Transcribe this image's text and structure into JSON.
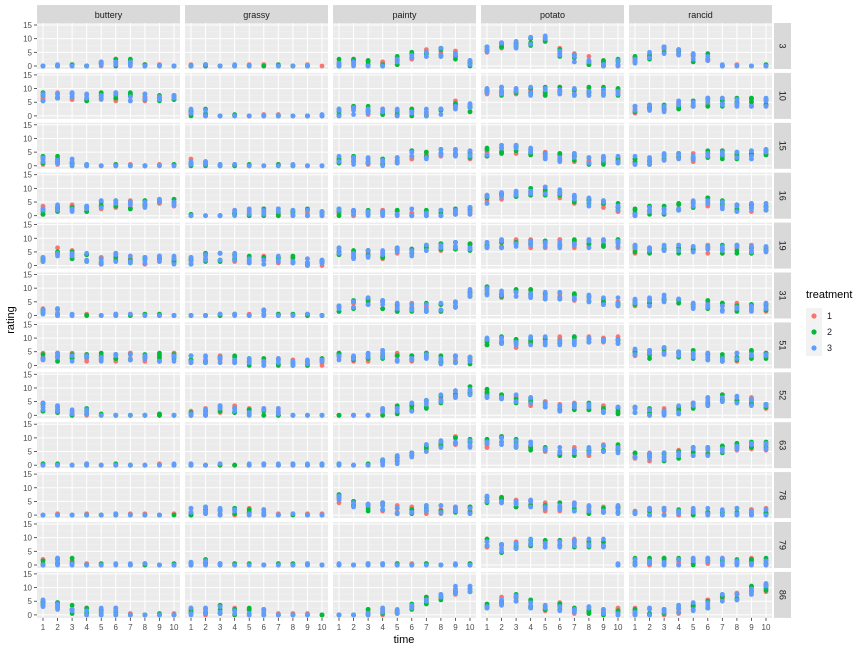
{
  "chart_data": {
    "type": "scatter",
    "layout": "facet_grid",
    "title": "",
    "xlabel": "time",
    "ylabel": "rating",
    "x_ticks": [
      "1",
      "2",
      "3",
      "4",
      "5",
      "6",
      "7",
      "8",
      "9",
      "10"
    ],
    "y_ticks": [
      "0",
      "5",
      "10",
      "15"
    ],
    "xlim": [
      1,
      10
    ],
    "ylim": [
      0,
      15
    ],
    "grid": true,
    "legend_position": "right",
    "columns": [
      "buttery",
      "grassy",
      "painty",
      "potato",
      "rancid"
    ],
    "rows": [
      "3",
      "10",
      "15",
      "16",
      "19",
      "31",
      "51",
      "52",
      "63",
      "78",
      "79",
      "86"
    ],
    "legend": {
      "title": "treatment",
      "entries": [
        {
          "name": "1",
          "color": "#F8766D"
        },
        {
          "name": "2",
          "color": "#00BA38"
        },
        {
          "name": "3",
          "color": "#619CFF"
        }
      ]
    },
    "colors": {
      "panel_bg": "#EBEBEB",
      "strip_bg": "#D9D9D9",
      "grid_major": "#FFFFFF",
      "grid_minor": "#F2F2F2",
      "axis_text": "#4D4D4D"
    },
    "profiles": {
      "buttery": {
        "3": [
          0,
          0,
          0,
          0,
          1,
          1,
          1,
          0,
          0,
          0
        ],
        "10": [
          7,
          7,
          7,
          7,
          7,
          7,
          7,
          7,
          7,
          7
        ],
        "15": [
          2,
          2,
          1,
          0,
          0,
          0,
          0,
          0,
          0,
          0
        ],
        "16": [
          2,
          3,
          3,
          3,
          4,
          4,
          4,
          4,
          5,
          5
        ],
        "19": [
          2,
          5,
          4,
          3,
          2,
          3,
          2,
          2,
          2,
          2
        ],
        "31": [
          2,
          1,
          0,
          0,
          0,
          0,
          0,
          0,
          0,
          0
        ],
        "51": [
          3,
          3,
          3,
          3,
          3,
          3,
          3,
          3,
          3,
          3
        ],
        "52": [
          3,
          2,
          1,
          1,
          0,
          0,
          0,
          0,
          0,
          0
        ],
        "63": [
          0,
          0,
          0,
          0,
          0,
          0,
          0,
          0,
          0,
          0
        ],
        "78": [
          0,
          0,
          0,
          0,
          0,
          0,
          0,
          0,
          0,
          0
        ],
        "79": [
          1,
          1,
          1,
          0,
          0,
          0,
          0,
          0,
          0,
          0
        ],
        "86": [
          4,
          3,
          2,
          1,
          1,
          1,
          0,
          0,
          0,
          0
        ]
      },
      "grassy": {
        "3": [
          0,
          0,
          0,
          0,
          0,
          0,
          0,
          0,
          0,
          0
        ],
        "10": [
          1,
          1,
          0,
          0,
          0,
          0,
          0,
          0,
          0,
          0
        ],
        "15": [
          1,
          1,
          0,
          0,
          0,
          0,
          0,
          0,
          0,
          0
        ],
        "16": [
          0,
          0,
          0,
          1,
          1,
          1,
          1,
          1,
          1,
          1
        ],
        "19": [
          2,
          3,
          3,
          3,
          2,
          2,
          2,
          2,
          1,
          1
        ],
        "31": [
          0,
          0,
          0,
          0,
          0,
          1,
          0,
          0,
          0,
          0
        ],
        "51": [
          2,
          2,
          2,
          2,
          1,
          1,
          1,
          1,
          1,
          1
        ],
        "52": [
          1,
          1,
          2,
          2,
          1,
          1,
          1,
          0,
          0,
          0
        ],
        "63": [
          0,
          0,
          0,
          0,
          0,
          0,
          0,
          0,
          0,
          0
        ],
        "78": [
          1,
          2,
          1,
          1,
          1,
          1,
          0,
          0,
          0,
          0
        ],
        "79": [
          1,
          1,
          0,
          0,
          0,
          0,
          0,
          0,
          0,
          0
        ],
        "86": [
          1,
          1,
          2,
          1,
          1,
          1,
          0,
          0,
          0,
          0
        ]
      },
      "painty": {
        "3": [
          1,
          1,
          1,
          1,
          2,
          4,
          5,
          5,
          4,
          1
        ],
        "10": [
          1,
          2,
          2,
          1,
          1,
          1,
          1,
          2,
          4,
          3
        ],
        "15": [
          2,
          2,
          2,
          1,
          2,
          4,
          4,
          5,
          5,
          4
        ],
        "16": [
          1,
          1,
          1,
          1,
          1,
          1,
          1,
          1,
          1,
          2
        ],
        "19": [
          5,
          4,
          4,
          4,
          5,
          5,
          6,
          7,
          7,
          7
        ],
        "31": [
          3,
          4,
          5,
          4,
          3,
          3,
          3,
          3,
          4,
          8
        ],
        "51": [
          3,
          3,
          3,
          4,
          3,
          3,
          3,
          2,
          2,
          2
        ],
        "52": [
          0,
          0,
          0,
          1,
          2,
          3,
          4,
          6,
          8,
          9
        ],
        "63": [
          0,
          0,
          0,
          1,
          2,
          4,
          6,
          8,
          9,
          8
        ],
        "78": [
          6,
          4,
          3,
          3,
          2,
          2,
          2,
          2,
          2,
          2
        ],
        "79": [
          0,
          0,
          0,
          0,
          0,
          0,
          0,
          0,
          0,
          0
        ],
        "86": [
          0,
          0,
          1,
          1,
          2,
          3,
          5,
          7,
          9,
          10
        ]
      },
      "potato": {
        "3": [
          6,
          7,
          8,
          9,
          10,
          5,
          3,
          2,
          1,
          1
        ],
        "10": [
          9,
          9,
          9,
          9,
          9,
          9,
          9,
          9,
          9,
          9
        ],
        "15": [
          5,
          6,
          6,
          5,
          4,
          3,
          3,
          2,
          2,
          2
        ],
        "16": [
          6,
          7,
          8,
          9,
          9,
          8,
          6,
          5,
          4,
          3
        ],
        "19": [
          8,
          8,
          8,
          8,
          8,
          8,
          8,
          8,
          8,
          8
        ],
        "31": [
          9,
          8,
          8,
          8,
          7,
          7,
          7,
          6,
          5,
          5
        ],
        "51": [
          9,
          9,
          8,
          9,
          9,
          9,
          9,
          9,
          9,
          9
        ],
        "52": [
          8,
          7,
          6,
          5,
          4,
          3,
          3,
          3,
          2,
          2
        ],
        "63": [
          8,
          9,
          8,
          7,
          6,
          5,
          5,
          5,
          6,
          6
        ],
        "78": [
          6,
          5,
          4,
          4,
          3,
          3,
          3,
          2,
          2,
          2
        ],
        "79": [
          8,
          6,
          7,
          8,
          8,
          8,
          8,
          8,
          8,
          0
        ],
        "86": [
          4,
          5,
          6,
          4,
          3,
          3,
          2,
          2,
          1,
          1
        ]
      },
      "rancid": {
        "3": [
          2,
          4,
          6,
          5,
          3,
          3,
          0,
          0,
          0,
          0
        ],
        "10": [
          2,
          3,
          3,
          4,
          4,
          5,
          5,
          5,
          5,
          5
        ],
        "15": [
          2,
          2,
          3,
          3,
          3,
          4,
          4,
          4,
          4,
          5
        ],
        "16": [
          1,
          2,
          2,
          3,
          4,
          5,
          4,
          3,
          3,
          3
        ],
        "19": [
          6,
          6,
          6,
          6,
          6,
          6,
          6,
          6,
          6,
          6
        ],
        "31": [
          5,
          5,
          6,
          5,
          4,
          4,
          3,
          3,
          3,
          3
        ],
        "51": [
          5,
          4,
          5,
          4,
          4,
          3,
          3,
          3,
          4,
          4
        ],
        "52": [
          2,
          1,
          1,
          2,
          4,
          5,
          6,
          6,
          5,
          4
        ],
        "63": [
          3,
          3,
          3,
          4,
          5,
          5,
          6,
          7,
          7,
          7
        ],
        "78": [
          1,
          1,
          1,
          1,
          1,
          1,
          1,
          1,
          1,
          1
        ],
        "79": [
          1,
          1,
          1,
          1,
          1,
          1,
          1,
          1,
          1,
          1
        ],
        "86": [
          1,
          1,
          1,
          2,
          3,
          4,
          6,
          7,
          9,
          10
        ]
      }
    },
    "obs_per_cell": 3,
    "spread": 1.6
  }
}
